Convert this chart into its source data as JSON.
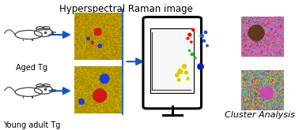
{
  "title": "Hyperspectral Raman image",
  "label_aged": "Aged Tg",
  "label_young": "Young adult Tg",
  "label_cluster": "Cluster Analysis",
  "bg_color": "#ffffff",
  "arrow_color": "#1155cc",
  "title_fontsize": 8.5,
  "label_fontsize": 7,
  "cluster_label_fontsize": 8,
  "cluster_dots": {
    "red": {
      "x": [
        0.655,
        0.668,
        0.648,
        0.661
      ],
      "y": [
        0.72,
        0.76,
        0.69,
        0.66
      ],
      "s": [
        14,
        10,
        8,
        7
      ]
    },
    "blue": {
      "x": [
        0.7,
        0.714,
        0.708,
        0.72
      ],
      "y": [
        0.71,
        0.74,
        0.67,
        0.63
      ],
      "s": [
        16,
        12,
        10,
        8
      ]
    },
    "green": {
      "x": [
        0.664,
        0.675,
        0.654
      ],
      "y": [
        0.56,
        0.53,
        0.59
      ],
      "s": [
        12,
        9,
        7
      ]
    },
    "navy": {
      "x": [
        0.695
      ],
      "y": [
        0.46
      ],
      "s": [
        40
      ]
    },
    "yellow": {
      "x": [
        0.62,
        0.635,
        0.608,
        0.642,
        0.615,
        0.648
      ],
      "y": [
        0.42,
        0.46,
        0.39,
        0.41,
        0.35,
        0.36
      ],
      "s": [
        28,
        22,
        18,
        15,
        13,
        11
      ]
    }
  }
}
